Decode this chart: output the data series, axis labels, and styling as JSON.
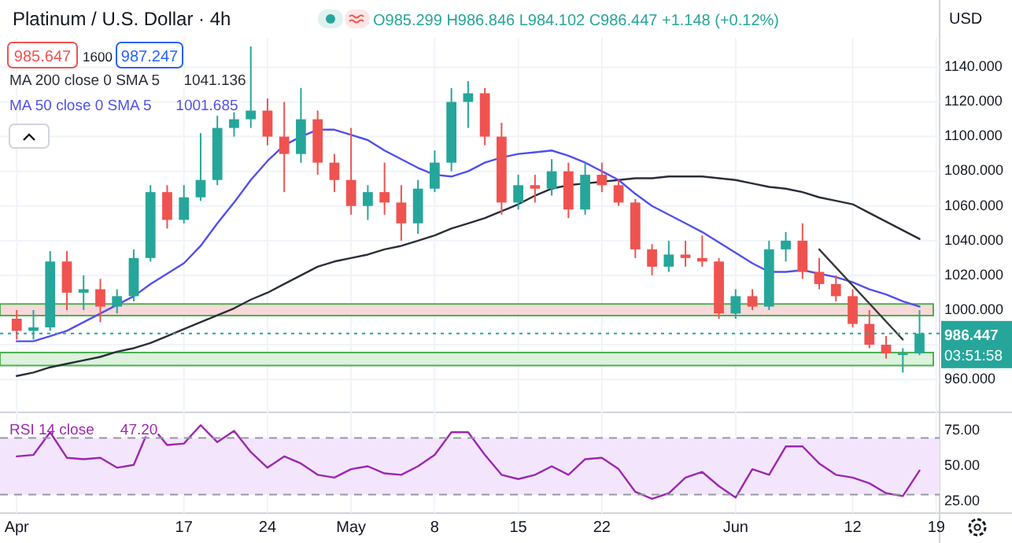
{
  "chart_data": [
    {
      "type": "candlestick",
      "title": "Platinum / U.S. Dollar · 4h",
      "ylabel": "USD",
      "legend": "top left",
      "tick_labels": "y",
      "grid": true,
      "categories": [
        null,
        null,
        null,
        null,
        null,
        null,
        null,
        null,
        null,
        null,
        null,
        null,
        null,
        null,
        null,
        null,
        null,
        null,
        null,
        null,
        null,
        null,
        null,
        null,
        null,
        null,
        null,
        null,
        null,
        null,
        null,
        null,
        null,
        null,
        null,
        null,
        null,
        null,
        null,
        null,
        null,
        null,
        null,
        null,
        null,
        null,
        null,
        null,
        null,
        null,
        null,
        null,
        null,
        null,
        null,
        null
      ],
      "ohlc": [
        [
          995,
          1000,
          983,
          988
        ],
        [
          988,
          1000,
          983,
          990
        ],
        [
          990,
          1034,
          988,
          1028
        ],
        [
          1028,
          1034,
          1000,
          1010
        ],
        [
          1010,
          1020,
          1000,
          1012
        ],
        [
          1012,
          1018,
          993,
          1002
        ],
        [
          1002,
          1012,
          998,
          1008
        ],
        [
          1008,
          1035,
          1005,
          1030
        ],
        [
          1030,
          1072,
          1028,
          1068
        ],
        [
          1068,
          1072,
          1047,
          1052
        ],
        [
          1052,
          1072,
          1050,
          1065
        ],
        [
          1065,
          1102,
          1063,
          1075
        ],
        [
          1075,
          1112,
          1072,
          1105
        ],
        [
          1105,
          1115,
          1100,
          1110
        ],
        [
          1110,
          1152,
          1105,
          1115
        ],
        [
          1115,
          1122,
          1095,
          1100
        ],
        [
          1100,
          1120,
          1068,
          1090
        ],
        [
          1090,
          1128,
          1085,
          1110
        ],
        [
          1110,
          1115,
          1078,
          1085
        ],
        [
          1085,
          1090,
          1068,
          1075
        ],
        [
          1075,
          1105,
          1055,
          1060
        ],
        [
          1060,
          1072,
          1052,
          1068
        ],
        [
          1068,
          1085,
          1055,
          1062
        ],
        [
          1062,
          1072,
          1040,
          1050
        ],
        [
          1050,
          1075,
          1044,
          1070
        ],
        [
          1070,
          1092,
          1068,
          1085
        ],
        [
          1085,
          1128,
          1080,
          1120
        ],
        [
          1120,
          1132,
          1105,
          1125
        ],
        [
          1125,
          1128,
          1095,
          1100
        ],
        [
          1100,
          1108,
          1055,
          1062
        ],
        [
          1062,
          1078,
          1058,
          1072
        ],
        [
          1072,
          1078,
          1062,
          1070
        ],
        [
          1070,
          1087,
          1066,
          1080
        ],
        [
          1080,
          1085,
          1053,
          1058
        ],
        [
          1058,
          1085,
          1055,
          1078
        ],
        [
          1078,
          1085,
          1068,
          1072
        ],
        [
          1072,
          1075,
          1060,
          1062
        ],
        [
          1062,
          1064,
          1030,
          1035
        ],
        [
          1035,
          1038,
          1020,
          1025
        ],
        [
          1025,
          1040,
          1022,
          1032
        ],
        [
          1032,
          1040,
          1025,
          1030
        ],
        [
          1030,
          1043,
          1025,
          1028
        ],
        [
          1028,
          1030,
          995,
          998
        ],
        [
          998,
          1012,
          995,
          1008
        ],
        [
          1008,
          1012,
          1000,
          1002
        ],
        [
          1002,
          1040,
          1000,
          1035
        ],
        [
          1035,
          1045,
          1028,
          1040
        ],
        [
          1040,
          1050,
          1018,
          1022
        ],
        [
          1022,
          1030,
          1012,
          1015
        ],
        [
          1015,
          1020,
          1005,
          1008
        ],
        [
          1008,
          1012,
          990,
          992
        ],
        [
          992,
          1000,
          978,
          980
        ],
        [
          980,
          985,
          972,
          975
        ],
        [
          975,
          978,
          964,
          975
        ],
        [
          975,
          1000,
          974,
          986.447
        ],
        null
      ],
      "series": [
        {
          "type": "line",
          "name": "MA 200 close 0 SMA 5",
          "color": "#2a2e39",
          "values": [
            962,
            964,
            967,
            969,
            971,
            973,
            976,
            978,
            981,
            985,
            989,
            993,
            997,
            1001,
            1006,
            1010,
            1015,
            1020,
            1025,
            1028,
            1030,
            1032,
            1035,
            1037,
            1040,
            1043,
            1047,
            1050,
            1053,
            1057,
            1061,
            1066,
            1070,
            1072,
            1073,
            1074,
            1075,
            1076,
            1076,
            1077,
            1077,
            1077,
            1076,
            1075,
            1073,
            1071,
            1070,
            1068,
            1065,
            1063,
            1061,
            1056,
            1051,
            1046,
            1041,
            null
          ]
        },
        {
          "type": "line",
          "name": "MA 50 close 0 SMA 5",
          "color": "#5050ee",
          "values": [
            982,
            982,
            985,
            988,
            993,
            998,
            1003,
            1008,
            1015,
            1021,
            1027,
            1037,
            1050,
            1062,
            1075,
            1086,
            1095,
            1100,
            1104,
            1104,
            1101,
            1098,
            1092,
            1087,
            1082,
            1078,
            1077,
            1080,
            1085,
            1088,
            1090,
            1091,
            1092,
            1089,
            1085,
            1080,
            1075,
            1067,
            1060,
            1055,
            1050,
            1045,
            1039,
            1033,
            1027,
            1022,
            1022,
            1023,
            1021,
            1019,
            1016,
            1012,
            1009,
            1005,
            1002,
            null
          ]
        },
        {
          "type": "line",
          "color": "#3a3a3a",
          "values": [
            null,
            null,
            null,
            null,
            null,
            null,
            null,
            null,
            null,
            null,
            null,
            null,
            null,
            null,
            null,
            null,
            null,
            null,
            null,
            null,
            null,
            null,
            null,
            null,
            null,
            null,
            null,
            null,
            null,
            null,
            null,
            null,
            null,
            null,
            null,
            null,
            null,
            null,
            null,
            null,
            null,
            null,
            null,
            null,
            null,
            null,
            null,
            null,
            1035,
            null,
            null,
            null,
            null,
            983,
            null,
            null
          ]
        }
      ],
      "ylim": [
        941,
        1157
      ],
      "yticks": [
        {
          "value": 960,
          "label": "960.000"
        },
        {
          "value": 980,
          "label": null
        },
        {
          "value": 1000,
          "label": "1000.000"
        },
        {
          "value": 1020,
          "label": "1020.000"
        },
        {
          "value": 1040,
          "label": "1040.000"
        },
        {
          "value": 1060,
          "label": "1060.000"
        },
        {
          "value": 1080,
          "label": "1080.000"
        },
        {
          "value": 1100,
          "label": "1100.000"
        },
        {
          "value": 1120,
          "label": "1120.000"
        },
        {
          "value": 1140,
          "label": "1140.000"
        }
      ],
      "bands": [
        {
          "axis": "y",
          "from": 996.8,
          "to": 1003.5,
          "color": "#f8d9d9"
        },
        {
          "axis": "y",
          "from": 968,
          "to": 975.5,
          "color": "#dcf2dc"
        }
      ],
      "ref_lines": [
        {
          "axis": "y",
          "value": 986.447,
          "label": "986.447",
          "color": "#26a69a",
          "line_style": "dotted"
        }
      ],
      "annotations": [
        "O985.299 H986.846 L984.102 C986.447 +1.148 (+0.12%)",
        "985.647",
        "1600",
        "987.247",
        "1041.136",
        "1001.685",
        "03:51:58"
      ]
    },
    {
      "type": "line",
      "legend": "top left",
      "grid": "x",
      "categories": [
        "Apr",
        null,
        null,
        null,
        null,
        null,
        null,
        null,
        null,
        null,
        "17",
        null,
        null,
        null,
        null,
        "24",
        null,
        null,
        null,
        null,
        "May",
        null,
        null,
        null,
        null,
        "8",
        null,
        null,
        null,
        null,
        "15",
        null,
        null,
        null,
        null,
        "22",
        null,
        null,
        null,
        null,
        null,
        null,
        null,
        "Jun",
        null,
        null,
        null,
        null,
        null,
        null,
        "12",
        null,
        null,
        null,
        null,
        "19"
      ],
      "series": [
        {
          "name": "RSI 14 close",
          "color": "#9c27b0",
          "values": [
            57,
            58,
            74,
            56,
            55,
            56,
            49,
            51,
            79,
            65,
            66,
            79,
            67,
            75,
            60,
            49,
            57,
            52,
            44,
            42,
            48,
            50,
            45,
            44,
            50,
            58,
            74,
            74,
            58,
            44,
            41,
            44,
            50,
            44,
            55,
            56,
            48,
            32,
            27,
            31,
            42,
            46,
            36,
            28,
            48,
            44,
            64,
            64,
            52,
            44,
            42,
            38,
            31,
            29,
            47,
            null
          ]
        }
      ],
      "ylim": [
        17,
        88
      ],
      "yticks": [
        {
          "value": 25,
          "label": "25.00"
        },
        {
          "value": 50,
          "label": "50.00"
        },
        {
          "value": 75,
          "label": "75.00"
        }
      ],
      "bands": [
        {
          "axis": "y",
          "from": 30,
          "to": 70,
          "color": "#f3e6fc"
        }
      ],
      "ref_lines": [
        {
          "axis": "y",
          "value": 30,
          "color": "#9598a1",
          "line_style": "dashed"
        },
        {
          "axis": "y",
          "value": 70,
          "color": "#9598a1",
          "line_style": "dashed"
        }
      ],
      "annotations": [
        "47.20"
      ]
    }
  ]
}
